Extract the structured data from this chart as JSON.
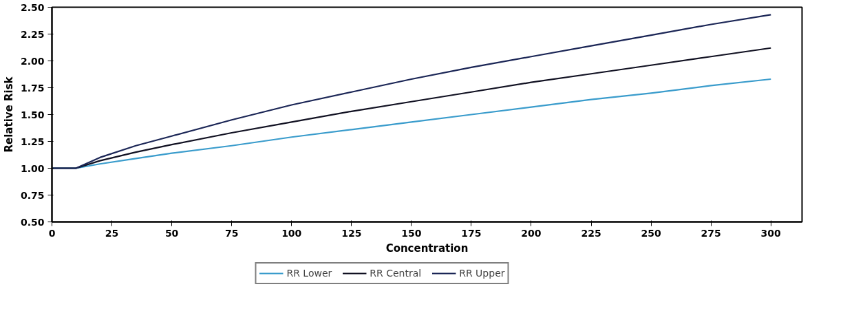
{
  "chart_data": {
    "type": "line",
    "xlabel": "Concentration",
    "ylabel": "Relative Risk",
    "x": [
      0,
      10,
      20,
      35,
      50,
      75,
      100,
      125,
      150,
      175,
      200,
      225,
      250,
      275,
      300
    ],
    "series": [
      {
        "name": "RR Lower",
        "color": "#3a9ccc",
        "values": [
          1.0,
          1.0,
          1.04,
          1.09,
          1.14,
          1.21,
          1.29,
          1.36,
          1.43,
          1.5,
          1.57,
          1.64,
          1.7,
          1.77,
          1.83
        ]
      },
      {
        "name": "RR Central",
        "color": "#111122",
        "values": [
          1.0,
          1.0,
          1.07,
          1.15,
          1.22,
          1.33,
          1.43,
          1.53,
          1.62,
          1.71,
          1.8,
          1.88,
          1.96,
          2.04,
          2.12
        ]
      },
      {
        "name": "RR Upper",
        "color": "#1b2656",
        "values": [
          1.0,
          1.0,
          1.1,
          1.21,
          1.3,
          1.45,
          1.59,
          1.71,
          1.83,
          1.94,
          2.04,
          2.14,
          2.24,
          2.34,
          2.43
        ]
      }
    ],
    "xlim": [
      0,
      313
    ],
    "ylim": [
      0.5,
      2.5
    ],
    "xticks": [
      0,
      25,
      50,
      75,
      100,
      125,
      150,
      175,
      200,
      225,
      250,
      275,
      300
    ],
    "yticks": [
      {
        "value": 0.5,
        "label": "0.50"
      },
      {
        "value": 0.75,
        "label": "0.75"
      },
      {
        "value": 1.0,
        "label": "1.00"
      },
      {
        "value": 1.25,
        "label": "1.25"
      },
      {
        "value": 1.5,
        "label": "1.50"
      },
      {
        "value": 1.75,
        "label": "1.75"
      },
      {
        "value": 2.0,
        "label": "2.00"
      },
      {
        "value": 2.25,
        "label": "2.25"
      },
      {
        "value": 2.5,
        "label": "2.50"
      }
    ],
    "grid": false,
    "legend": "bottom",
    "line_style": "solid",
    "marker": "none"
  }
}
